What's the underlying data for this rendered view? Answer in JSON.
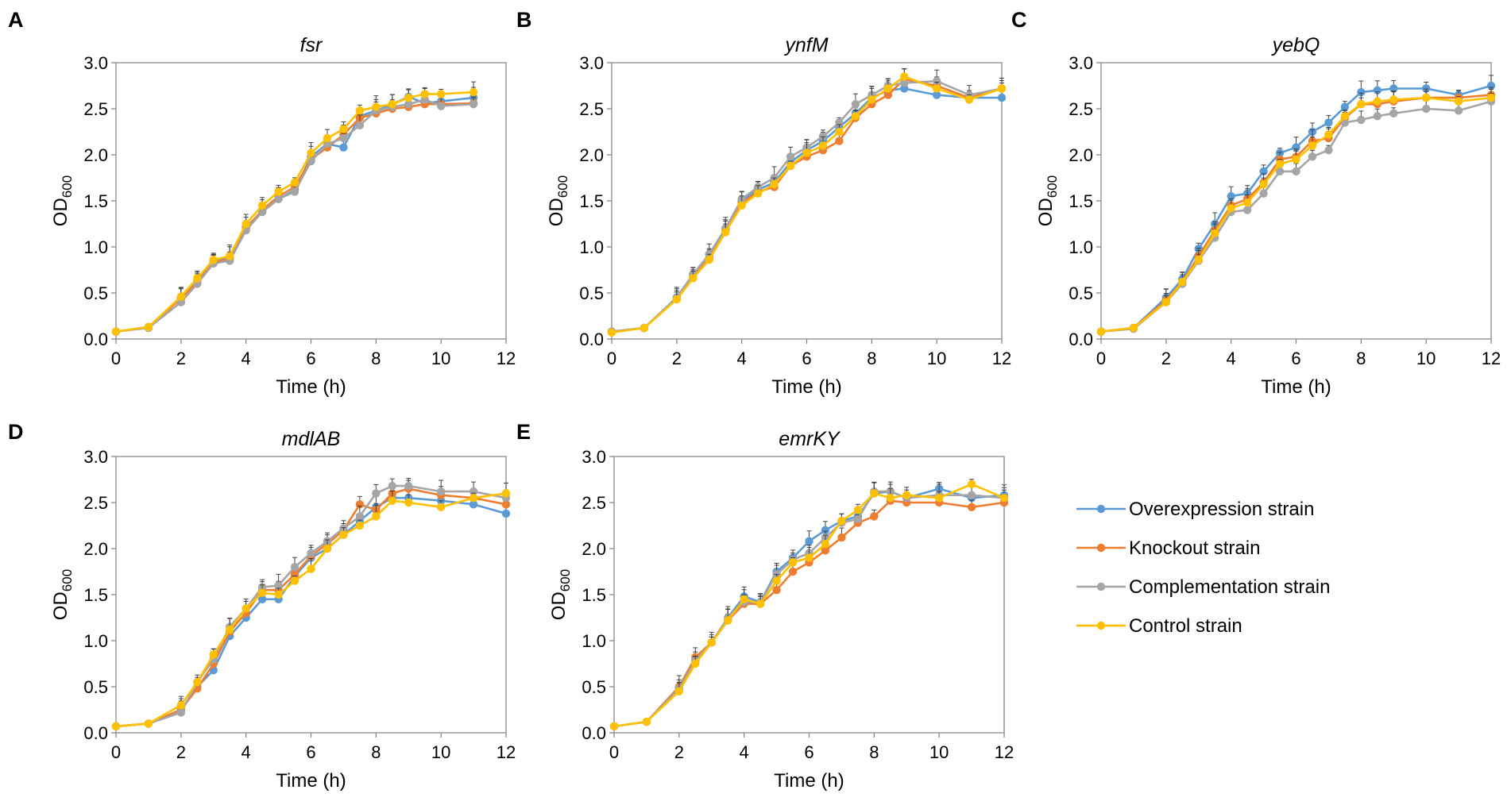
{
  "legend": [
    {
      "label": "Overexpression strain",
      "color": "#5B9BD5"
    },
    {
      "label": "Knockout strain",
      "color": "#ED7D31"
    },
    {
      "label": "Complementation strain",
      "color": "#A5A5A5"
    },
    {
      "label": "Control strain",
      "color": "#FFC000"
    }
  ],
  "chart_data": [
    {
      "type": "line",
      "panel": "A",
      "title": "fsr",
      "xlabel": "Time (h)",
      "ylabel_main": "OD",
      "ylabel_sub": "600",
      "xlim": [
        0,
        12
      ],
      "ylim": [
        0,
        3
      ],
      "xticks": [
        "0",
        "2",
        "4",
        "6",
        "8",
        "10",
        "12"
      ],
      "yticks": [
        "0.0",
        "0.5",
        "1.0",
        "1.5",
        "2.0",
        "2.5",
        "3.0"
      ],
      "x": [
        0,
        1,
        2,
        2.5,
        3,
        3.5,
        4,
        4.5,
        5,
        5.5,
        6,
        6.5,
        7,
        7.5,
        8,
        8.5,
        9,
        9.5,
        10,
        11
      ],
      "series": [
        {
          "name": "Overexpression strain",
          "values": [
            0.08,
            0.13,
            0.45,
            0.63,
            0.85,
            0.88,
            1.22,
            1.38,
            1.52,
            1.62,
            1.98,
            2.12,
            2.08,
            2.42,
            2.48,
            2.55,
            2.63,
            2.56,
            2.58,
            2.62
          ]
        },
        {
          "name": "Knockout strain",
          "values": [
            0.08,
            0.13,
            0.44,
            0.62,
            0.83,
            0.87,
            1.2,
            1.4,
            1.55,
            1.65,
            1.95,
            2.08,
            2.22,
            2.4,
            2.45,
            2.5,
            2.52,
            2.55,
            2.55,
            2.56
          ]
        },
        {
          "name": "Complementation strain",
          "values": [
            0.08,
            0.12,
            0.4,
            0.6,
            0.82,
            0.85,
            1.18,
            1.38,
            1.52,
            1.6,
            1.93,
            2.12,
            2.18,
            2.32,
            2.48,
            2.52,
            2.55,
            2.6,
            2.53,
            2.55
          ]
        },
        {
          "name": "Control strain",
          "values": [
            0.08,
            0.13,
            0.46,
            0.66,
            0.86,
            0.9,
            1.25,
            1.45,
            1.6,
            1.7,
            2.02,
            2.18,
            2.28,
            2.48,
            2.52,
            2.55,
            2.62,
            2.66,
            2.66,
            2.68
          ]
        }
      ]
    },
    {
      "type": "line",
      "panel": "B",
      "title": "ynfM",
      "xlabel": "Time (h)",
      "ylabel_main": "OD",
      "ylabel_sub": "600",
      "xlim": [
        0,
        12
      ],
      "ylim": [
        0,
        3
      ],
      "xticks": [
        "0",
        "2",
        "4",
        "6",
        "8",
        "10",
        "12"
      ],
      "yticks": [
        "0.0",
        "0.5",
        "1.0",
        "1.5",
        "2.0",
        "2.5",
        "3.0"
      ],
      "x": [
        0,
        1,
        2,
        2.5,
        3,
        3.5,
        4,
        4.5,
        5,
        5.5,
        6,
        6.5,
        7,
        7.5,
        8,
        8.5,
        9,
        10,
        11,
        12
      ],
      "series": [
        {
          "name": "Overexpression strain",
          "values": [
            0.08,
            0.12,
            0.45,
            0.7,
            0.92,
            1.2,
            1.5,
            1.62,
            1.7,
            1.92,
            2.05,
            2.15,
            2.3,
            2.45,
            2.62,
            2.7,
            2.72,
            2.65,
            2.62,
            2.62
          ]
        },
        {
          "name": "Knockout strain",
          "values": [
            0.08,
            0.12,
            0.44,
            0.67,
            0.88,
            1.18,
            1.48,
            1.6,
            1.65,
            1.88,
            1.98,
            2.05,
            2.15,
            2.4,
            2.55,
            2.65,
            2.82,
            2.75,
            2.62,
            2.72
          ]
        },
        {
          "name": "Complementation strain",
          "values": [
            0.08,
            0.12,
            0.44,
            0.7,
            0.92,
            1.2,
            1.52,
            1.65,
            1.75,
            1.98,
            2.08,
            2.2,
            2.35,
            2.55,
            2.65,
            2.75,
            2.78,
            2.8,
            2.65,
            2.72
          ]
        },
        {
          "name": "Control strain",
          "values": [
            0.07,
            0.12,
            0.43,
            0.66,
            0.86,
            1.16,
            1.45,
            1.58,
            1.68,
            1.88,
            2.02,
            2.1,
            2.25,
            2.42,
            2.6,
            2.72,
            2.85,
            2.72,
            2.6,
            2.72
          ]
        }
      ]
    },
    {
      "type": "line",
      "panel": "C",
      "title": "yebQ",
      "xlabel": "Time (h)",
      "ylabel_main": "OD",
      "ylabel_sub": "600",
      "xlim": [
        0,
        12
      ],
      "ylim": [
        0,
        3
      ],
      "xticks": [
        "0",
        "2",
        "4",
        "6",
        "8",
        "10",
        "12"
      ],
      "yticks": [
        "0.0",
        "0.5",
        "1.0",
        "1.5",
        "2.0",
        "2.5",
        "3.0"
      ],
      "x": [
        0,
        1,
        2,
        2.5,
        3,
        3.5,
        4,
        4.5,
        5,
        5.5,
        6,
        6.5,
        7,
        7.5,
        8,
        8.5,
        9,
        10,
        11,
        12
      ],
      "series": [
        {
          "name": "Overexpression strain",
          "values": [
            0.08,
            0.12,
            0.45,
            0.65,
            0.98,
            1.25,
            1.55,
            1.58,
            1.82,
            2.02,
            2.08,
            2.25,
            2.35,
            2.52,
            2.68,
            2.7,
            2.72,
            2.72,
            2.65,
            2.75
          ]
        },
        {
          "name": "Knockout strain",
          "values": [
            0.08,
            0.12,
            0.42,
            0.62,
            0.9,
            1.18,
            1.45,
            1.52,
            1.7,
            1.95,
            1.98,
            2.15,
            2.18,
            2.4,
            2.55,
            2.55,
            2.58,
            2.62,
            2.62,
            2.65
          ]
        },
        {
          "name": "Complementation strain",
          "values": [
            0.08,
            0.11,
            0.4,
            0.6,
            0.85,
            1.1,
            1.38,
            1.4,
            1.58,
            1.82,
            1.82,
            1.98,
            2.05,
            2.35,
            2.38,
            2.42,
            2.45,
            2.5,
            2.48,
            2.58
          ]
        },
        {
          "name": "Control strain",
          "values": [
            0.08,
            0.12,
            0.4,
            0.62,
            0.86,
            1.15,
            1.42,
            1.48,
            1.68,
            1.9,
            1.95,
            2.1,
            2.22,
            2.42,
            2.55,
            2.58,
            2.6,
            2.62,
            2.58,
            2.62
          ]
        }
      ]
    },
    {
      "type": "line",
      "panel": "D",
      "title": "mdlAB",
      "xlabel": "Time (h)",
      "ylabel_main": "OD",
      "ylabel_sub": "600",
      "xlim": [
        0,
        12
      ],
      "ylim": [
        0,
        3
      ],
      "xticks": [
        "0",
        "2",
        "4",
        "6",
        "8",
        "10",
        "12"
      ],
      "yticks": [
        "0.0",
        "0.5",
        "1.0",
        "1.5",
        "2.0",
        "2.5",
        "3.0"
      ],
      "x": [
        0,
        1,
        2,
        2.5,
        3,
        3.5,
        4,
        4.5,
        5,
        5.5,
        6,
        6.5,
        7,
        7.5,
        8,
        8.5,
        9,
        10,
        11,
        12
      ],
      "series": [
        {
          "name": "Overexpression strain",
          "values": [
            0.07,
            0.1,
            0.25,
            0.5,
            0.68,
            1.05,
            1.25,
            1.45,
            1.45,
            1.7,
            1.9,
            2.0,
            2.15,
            2.3,
            2.45,
            2.55,
            2.55,
            2.52,
            2.48,
            2.38
          ]
        },
        {
          "name": "Knockout strain",
          "values": [
            0.07,
            0.1,
            0.25,
            0.48,
            0.75,
            1.1,
            1.3,
            1.55,
            1.55,
            1.72,
            1.92,
            2.05,
            2.2,
            2.48,
            2.42,
            2.6,
            2.65,
            2.58,
            2.55,
            2.48
          ]
        },
        {
          "name": "Complementation strain",
          "values": [
            0.07,
            0.1,
            0.22,
            0.55,
            0.8,
            1.15,
            1.35,
            1.58,
            1.6,
            1.8,
            1.95,
            2.08,
            2.22,
            2.35,
            2.6,
            2.68,
            2.68,
            2.62,
            2.62,
            2.55
          ]
        },
        {
          "name": "Control strain",
          "values": [
            0.07,
            0.1,
            0.3,
            0.55,
            0.85,
            1.12,
            1.35,
            1.52,
            1.5,
            1.65,
            1.78,
            2.0,
            2.15,
            2.25,
            2.35,
            2.52,
            2.5,
            2.45,
            2.55,
            2.6
          ]
        }
      ]
    },
    {
      "type": "line",
      "panel": "E",
      "title": "emrKY",
      "xlabel": "Time (h)",
      "ylabel_main": "OD",
      "ylabel_sub": "600",
      "xlim": [
        0,
        12
      ],
      "ylim": [
        0,
        3
      ],
      "xticks": [
        "0",
        "2",
        "4",
        "6",
        "8",
        "10",
        "12"
      ],
      "yticks": [
        "0.0",
        "0.5",
        "1.0",
        "1.5",
        "2.0",
        "2.5",
        "3.0"
      ],
      "x": [
        0,
        1,
        2,
        2.5,
        3,
        3.5,
        4,
        4.5,
        5,
        5.5,
        6,
        6.5,
        7,
        7.5,
        8,
        8.5,
        9,
        10,
        11,
        12
      ],
      "series": [
        {
          "name": "Overexpression strain",
          "values": [
            0.07,
            0.12,
            0.48,
            0.8,
            0.98,
            1.25,
            1.48,
            1.42,
            1.75,
            1.9,
            2.08,
            2.2,
            2.3,
            2.35,
            2.6,
            2.62,
            2.55,
            2.65,
            2.55,
            2.58
          ]
        },
        {
          "name": "Knockout strain",
          "values": [
            0.07,
            0.12,
            0.5,
            0.82,
            0.98,
            1.22,
            1.4,
            1.4,
            1.55,
            1.75,
            1.85,
            1.98,
            2.12,
            2.28,
            2.35,
            2.52,
            2.5,
            2.5,
            2.45,
            2.5
          ]
        },
        {
          "name": "Complementation strain",
          "values": [
            0.07,
            0.12,
            0.48,
            0.78,
            0.98,
            1.25,
            1.42,
            1.42,
            1.72,
            1.88,
            1.95,
            2.12,
            2.28,
            2.32,
            2.62,
            2.62,
            2.55,
            2.58,
            2.58,
            2.55
          ]
        },
        {
          "name": "Control strain",
          "values": [
            0.07,
            0.12,
            0.45,
            0.75,
            0.98,
            1.22,
            1.45,
            1.4,
            1.65,
            1.85,
            1.9,
            2.05,
            2.3,
            2.42,
            2.6,
            2.55,
            2.58,
            2.55,
            2.7,
            2.55
          ]
        }
      ]
    }
  ]
}
